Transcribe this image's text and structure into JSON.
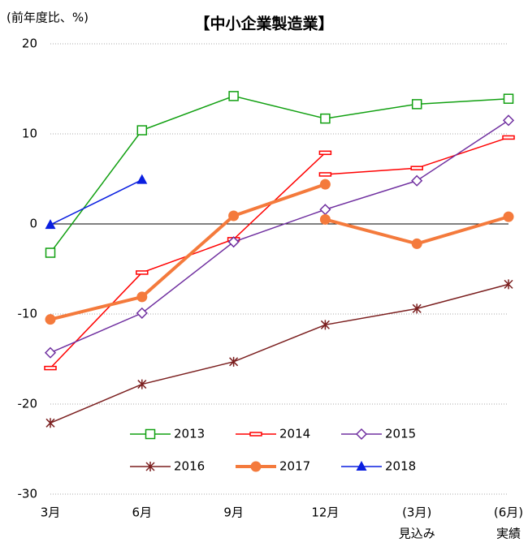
{
  "chart_data": {
    "type": "line",
    "title": "【中小企業製造業】",
    "unit_label": "(前年度比、%)",
    "categories": [
      "3月",
      "6月",
      "9月",
      "12月",
      "(3月)",
      "(6月)"
    ],
    "category_sublabels": [
      null,
      null,
      null,
      null,
      "見込み",
      "実績"
    ],
    "ylim": [
      -30,
      20
    ],
    "yticks": [
      -30,
      -20,
      -10,
      0,
      10,
      20
    ],
    "grid": true,
    "series": [
      {
        "name": "2013",
        "color": "#11a011",
        "marker": "square-open",
        "width": 1.5,
        "values": [
          -3.2,
          10.4,
          14.2,
          11.7,
          13.3,
          13.9
        ]
      },
      {
        "name": "2014",
        "color": "#ff0000",
        "marker": "dash",
        "width": 1.5,
        "values": [
          -16.0,
          -5.4,
          -1.7,
          7.9,
          null,
          null
        ],
        "values_revised": [
          null,
          null,
          null,
          5.5,
          6.2,
          9.6
        ]
      },
      {
        "name": "2015",
        "color": "#7030a0",
        "marker": "diamond-open",
        "width": 1.5,
        "values": [
          -14.3,
          -9.9,
          -2.0,
          1.6,
          4.8,
          11.5
        ]
      },
      {
        "name": "2016",
        "color": "#7b1f1f",
        "marker": "star",
        "width": 1.5,
        "values": [
          -22.1,
          -17.8,
          -15.3,
          -11.2,
          -9.4,
          -6.7
        ]
      },
      {
        "name": "2017",
        "color": "#f47a3c",
        "marker": "circle",
        "width": 4,
        "values": [
          -10.6,
          -8.1,
          0.9,
          4.4,
          null,
          null
        ],
        "values_revised": [
          null,
          null,
          null,
          0.5,
          -2.2,
          0.8
        ]
      },
      {
        "name": "2018",
        "color": "#0a1fe0",
        "marker": "triangle",
        "width": 1.5,
        "values": [
          -0.1,
          4.9,
          null,
          null,
          null,
          null
        ]
      }
    ]
  }
}
